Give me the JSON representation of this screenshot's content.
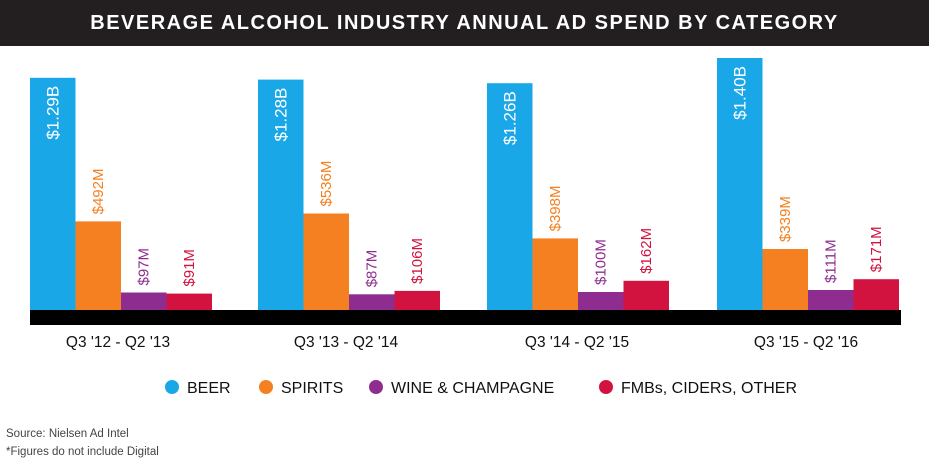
{
  "chart_data": {
    "type": "bar",
    "title": "BEVERAGE ALCOHOL INDUSTRY ANNUAL AD SPEND BY CATEGORY",
    "categories": [
      "Q3 '12 - Q2 '13",
      "Q3 '13 - Q2 '14",
      "Q3 '14 - Q2 '15",
      "Q3 '15 - Q2 '16"
    ],
    "unit": "USD millions",
    "series": [
      {
        "name": "BEER",
        "color": "#1aa7e8",
        "values": [
          1290,
          1280,
          1260,
          1400
        ],
        "labels": [
          "$1.29B",
          "$1.28B",
          "$1.26B",
          "$1.40B"
        ],
        "label_color": "#ffffff"
      },
      {
        "name": "SPIRITS",
        "color": "#f58021",
        "values": [
          492,
          536,
          398,
          339
        ],
        "labels": [
          "$492M",
          "$536M",
          "$398M",
          "$339M"
        ],
        "label_color": "#f58021"
      },
      {
        "name": "WINE & CHAMPAGNE",
        "color": "#8e2d8f",
        "values": [
          97,
          87,
          100,
          111
        ],
        "labels": [
          "$97M",
          "$87M",
          "$100M",
          "$111M"
        ],
        "label_color": "#8e2d8f"
      },
      {
        "name": "FMBs, CIDERS, OTHER",
        "color": "#d3133f",
        "values": [
          91,
          106,
          162,
          171
        ],
        "labels": [
          "$91M",
          "$106M",
          "$162M",
          "$171M"
        ],
        "label_color": "#d3133f"
      }
    ],
    "xlabel": "",
    "ylabel": "",
    "ylim": [
      0,
      1400
    ],
    "grid": false,
    "legend_position": "bottom"
  },
  "footnotes": {
    "source": "Source: Nielsen Ad Intel",
    "note": "*Figures do not include Digital"
  },
  "colors": {
    "title_bg": "#231f20",
    "baseline": "#000000"
  }
}
